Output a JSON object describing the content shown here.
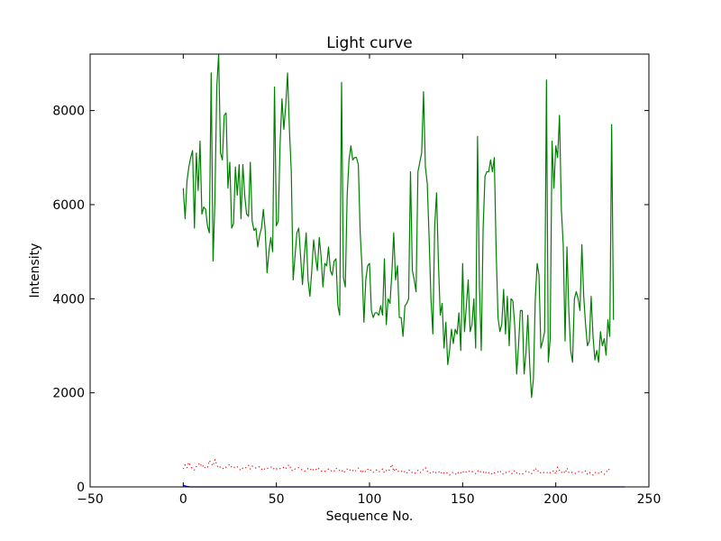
{
  "chart_data": {
    "type": "line",
    "title": "Light curve",
    "xlabel": "Sequence No.",
    "ylabel": "Intensity",
    "xlim": [
      -50,
      250
    ],
    "ylim": [
      0,
      9200
    ],
    "xticks": [
      "−50",
      "0",
      "50",
      "100",
      "150",
      "200",
      "250"
    ],
    "xtick_values": [
      -50,
      0,
      50,
      100,
      150,
      200,
      250
    ],
    "yticks": [
      "0",
      "2000",
      "4000",
      "6000",
      "8000"
    ],
    "ytick_values": [
      0,
      2000,
      4000,
      6000,
      8000
    ],
    "grid": false,
    "series": [
      {
        "color": "#008000",
        "style": "solid",
        "x_start": 0,
        "x_step": 1,
        "values": [
          6350,
          5700,
          6500,
          6800,
          7000,
          7150,
          5500,
          7100,
          6300,
          7350,
          5800,
          5950,
          5900,
          5550,
          5400,
          8800,
          4800,
          6100,
          8500,
          9200,
          7100,
          6950,
          7900,
          7950,
          6350,
          6900,
          5500,
          5600,
          6800,
          6200,
          6850,
          5700,
          6850,
          6200,
          5800,
          5750,
          6900,
          5650,
          5450,
          5500,
          5100,
          5350,
          5500,
          5900,
          5450,
          4550,
          5000,
          5300,
          5000,
          8500,
          5550,
          5650,
          7300,
          8250,
          7600,
          8100,
          8800,
          7600,
          6700,
          4400,
          4900,
          5400,
          5500,
          4900,
          4300,
          4900,
          5400,
          4400,
          4050,
          4600,
          5250,
          4900,
          4600,
          5300,
          4900,
          4250,
          4750,
          4700,
          5100,
          4600,
          4500,
          4800,
          4850,
          3850,
          3650,
          8600,
          4450,
          4250,
          6200,
          6950,
          7250,
          6950,
          7000,
          7000,
          6850,
          5400,
          4650,
          3500,
          4400,
          4700,
          4750,
          3750,
          3600,
          3700,
          3700,
          3650,
          3850,
          3650,
          4850,
          3450,
          4000,
          3900,
          4550,
          5400,
          4400,
          4700,
          3600,
          3600,
          3200,
          3850,
          3900,
          4000,
          6700,
          4600,
          4400,
          4150,
          6700,
          6900,
          7100,
          8400,
          6800,
          6450,
          5300,
          4000,
          3250,
          5550,
          6250,
          4750,
          3650,
          3900,
          2950,
          3500,
          2600,
          2900,
          3350,
          3050,
          3350,
          3250,
          3700,
          2900,
          4750,
          3300,
          3850,
          4400,
          3300,
          3450,
          4000,
          2950,
          7450,
          4300,
          2900,
          5500,
          6600,
          6700,
          6700,
          6950,
          6700,
          7000,
          5000,
          3600,
          3300,
          3450,
          4200,
          3250,
          4050,
          3000,
          4000,
          3950,
          3400,
          2400,
          3000,
          3750,
          3750,
          2400,
          2850,
          3650,
          2600,
          1900,
          2300,
          4000,
          4750,
          4500,
          2950,
          3100,
          3300,
          8650,
          2650,
          3150,
          7350,
          6350,
          7250,
          7000,
          7900,
          5900,
          5150,
          3100,
          5100,
          3750,
          2900,
          2650,
          4000,
          4150,
          4000,
          3750,
          5150,
          4050,
          3450,
          3000,
          3100,
          4050,
          3200,
          2700,
          2900,
          2650,
          3300,
          3000,
          3150,
          2800,
          3550,
          3200,
          7700,
          3550
        ]
      },
      {
        "color": "#ff0000",
        "style": "dotted",
        "x_start": 0,
        "x_step": 1,
        "values": [
          380,
          470,
          410,
          520,
          440,
          380,
          360,
          430,
          470,
          510,
          420,
          460,
          390,
          420,
          560,
          500,
          450,
          580,
          470,
          400,
          430,
          400,
          380,
          420,
          450,
          480,
          420,
          400,
          440,
          430,
          380,
          350,
          400,
          390,
          420,
          460,
          380,
          440,
          430,
          400,
          410,
          430,
          380,
          350,
          400,
          390,
          410,
          420,
          430,
          360,
          380,
          400,
          390,
          420,
          410,
          380,
          450,
          470,
          360,
          340,
          380,
          400,
          410,
          390,
          350,
          330,
          360,
          390,
          400,
          340,
          370,
          350,
          410,
          380,
          340,
          320,
          330,
          350,
          380,
          360,
          320,
          330,
          400,
          360,
          350,
          370,
          300,
          340,
          380,
          390,
          330,
          350,
          320,
          360,
          400,
          350,
          300,
          360,
          320,
          370,
          390,
          330,
          310,
          350,
          360,
          320,
          340,
          380,
          300,
          350,
          330,
          380,
          480,
          330,
          400,
          320,
          350,
          340,
          300,
          330,
          290,
          360,
          350,
          300,
          280,
          310,
          350,
          300,
          320,
          380,
          410,
          330,
          290,
          300,
          330,
          280,
          320,
          310,
          340,
          270,
          300,
          320,
          280,
          250,
          300,
          310,
          280,
          260,
          330,
          300,
          340,
          290,
          320,
          310,
          350,
          330,
          300,
          280,
          330,
          360,
          300,
          320,
          280,
          330,
          300,
          310,
          260,
          300,
          300,
          320,
          350,
          280,
          270,
          310,
          300,
          330,
          280,
          290,
          350,
          300,
          260,
          290,
          270,
          300,
          330,
          300,
          320,
          280,
          340,
          400,
          330,
          350,
          290,
          310,
          300,
          290,
          330,
          300,
          310,
          350,
          280,
          420,
          350,
          300,
          340,
          290,
          400,
          310,
          330,
          300,
          280,
          300,
          320,
          330,
          310,
          300,
          340,
          270,
          310,
          290,
          250,
          300,
          320,
          290,
          330,
          310,
          270,
          300,
          380,
          360,
          350
        ]
      },
      {
        "color": "#0000ff",
        "style": "solid",
        "x_start": 0,
        "x_step": 1,
        "values": [
          40,
          20,
          10,
          5,
          0,
          0,
          0,
          0,
          0,
          0,
          0,
          0,
          0,
          0,
          0,
          0,
          0,
          0,
          0,
          0,
          0,
          0,
          0,
          0,
          0,
          0,
          0,
          0,
          0,
          0,
          0,
          0,
          0,
          0,
          0,
          0,
          0,
          0,
          0,
          0,
          0,
          0,
          0,
          0,
          0,
          0,
          0,
          0,
          0,
          0,
          0,
          0,
          0,
          0,
          0,
          0,
          0,
          0,
          0,
          0,
          0,
          0,
          0,
          0,
          0,
          0,
          0,
          0,
          0,
          0,
          0,
          0,
          0,
          0,
          0,
          0,
          0,
          0,
          0,
          0,
          0,
          0,
          0,
          0,
          0,
          0,
          0,
          0,
          0,
          0,
          0,
          0,
          0,
          0,
          0,
          0,
          0,
          0,
          0,
          0,
          0,
          0,
          0,
          0,
          0,
          0,
          0,
          0,
          0,
          0,
          0,
          0,
          0,
          0,
          0,
          0,
          0,
          0,
          0,
          0,
          0,
          0,
          0,
          0,
          0,
          0,
          0,
          0,
          0,
          0,
          0,
          0,
          0,
          0,
          0,
          0,
          0,
          0,
          0,
          0,
          0,
          0,
          0,
          0,
          0,
          0,
          0,
          0,
          0,
          0,
          0,
          0,
          0,
          0,
          0,
          0,
          0,
          0,
          0,
          0,
          0,
          0,
          0,
          0,
          0,
          0,
          0,
          0,
          0,
          0,
          0,
          0,
          0,
          0,
          0,
          0,
          0,
          0,
          0,
          0,
          0,
          0,
          0,
          0,
          0,
          0,
          0,
          0,
          0,
          0,
          0,
          0,
          0,
          0,
          0,
          0,
          0,
          0,
          0,
          0,
          0,
          0,
          0,
          0,
          0,
          0,
          0,
          0,
          0,
          0,
          0,
          0,
          0,
          0,
          0,
          0,
          0,
          0,
          0,
          0,
          0,
          0,
          0,
          0,
          0,
          0,
          0,
          0,
          0,
          0,
          0,
          0,
          0,
          0,
          0,
          0,
          0,
          0
        ]
      }
    ]
  }
}
